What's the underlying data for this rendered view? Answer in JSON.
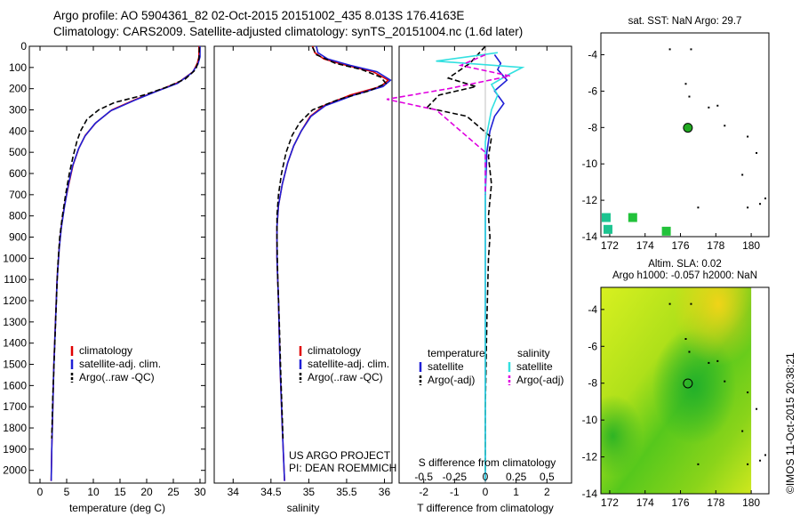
{
  "titles": {
    "line1": "Argo profile: AO 5904361_82 02-Oct-2015 20151002_435 8.013S 176.4163E",
    "line2": "Climatology: CARS2009. Satellite-adjusted climatology: synTS_20151004.nc (1.6d later)"
  },
  "colors": {
    "climatology": "#e00000",
    "satellite": "#1f1fd6",
    "argo": "#000000",
    "satellite_salinity": "#33e0e0",
    "argo_salinity": "#e000e0",
    "map_marker": "#22aa22"
  },
  "chart_data": [
    {
      "id": "temperature",
      "type": "line",
      "xlabel": "temperature (deg C)",
      "ylabel": "",
      "xlim": [
        -2,
        31
      ],
      "ylim": [
        2060,
        0
      ],
      "xticks": [
        0,
        5,
        10,
        15,
        20,
        25,
        30
      ],
      "yticks": [
        0,
        100,
        200,
        300,
        400,
        500,
        600,
        700,
        800,
        900,
        1000,
        1100,
        1200,
        1300,
        1400,
        1500,
        1600,
        1700,
        1800,
        1900,
        2000
      ],
      "legend": [
        "climatology",
        "satellite-adj. clim.",
        "Argo(..raw -QC)"
      ],
      "legend_loc": "lower-center",
      "series": [
        {
          "name": "climatology",
          "color": "climatology",
          "dash": "",
          "points": [
            [
              29.8,
              0
            ],
            [
              29.8,
              50
            ],
            [
              29.5,
              80
            ],
            [
              28.7,
              120
            ],
            [
              26,
              170
            ],
            [
              22,
              210
            ],
            [
              18,
              250
            ],
            [
              13.5,
              300
            ],
            [
              10.5,
              360
            ],
            [
              8.5,
              420
            ],
            [
              7.3,
              480
            ],
            [
              6.2,
              560
            ],
            [
              5.4,
              650
            ],
            [
              4.6,
              750
            ],
            [
              4,
              850
            ],
            [
              3.6,
              950
            ],
            [
              3.2,
              1100
            ],
            [
              2.9,
              1300
            ],
            [
              2.6,
              1500
            ],
            [
              2.4,
              1700
            ],
            [
              2.2,
              1900
            ],
            [
              2.1,
              2050
            ]
          ]
        },
        {
          "name": "satellite-adj. clim.",
          "color": "satellite",
          "dash": "",
          "points": [
            [
              30,
              0
            ],
            [
              30,
              50
            ],
            [
              29.6,
              85
            ],
            [
              28.5,
              125
            ],
            [
              25.8,
              175
            ],
            [
              21.6,
              215
            ],
            [
              17.7,
              255
            ],
            [
              13.2,
              305
            ],
            [
              10.3,
              365
            ],
            [
              8.4,
              425
            ],
            [
              7.2,
              485
            ],
            [
              6.1,
              565
            ],
            [
              5.3,
              655
            ],
            [
              4.6,
              755
            ],
            [
              4,
              855
            ],
            [
              3.6,
              955
            ],
            [
              3.2,
              1105
            ],
            [
              2.9,
              1305
            ],
            [
              2.6,
              1505
            ],
            [
              2.4,
              1705
            ],
            [
              2.2,
              1905
            ],
            [
              2.1,
              2050
            ]
          ]
        },
        {
          "name": "Argo(..raw -QC)",
          "color": "argo",
          "dash": "6 3",
          "points": [
            [
              29.9,
              5
            ],
            [
              29.8,
              60
            ],
            [
              29.2,
              110
            ],
            [
              27.2,
              155
            ],
            [
              23.5,
              195
            ],
            [
              19.5,
              230
            ],
            [
              14,
              265
            ],
            [
              11,
              300
            ],
            [
              8.8,
              345
            ],
            [
              7.6,
              400
            ],
            [
              6.9,
              450
            ],
            [
              6.2,
              520
            ],
            [
              5.5,
              600
            ],
            [
              4.8,
              700
            ],
            [
              4.2,
              800
            ],
            [
              3.7,
              900
            ],
            [
              3.3,
              1050
            ],
            [
              3,
              1250
            ],
            [
              2.7,
              1450
            ],
            [
              2.4,
              1650
            ],
            [
              2.2,
              1850
            ]
          ]
        }
      ]
    },
    {
      "id": "salinity",
      "type": "line",
      "xlabel": "salinity",
      "ylabel": "",
      "xlim": [
        33.75,
        36.1
      ],
      "ylim": [
        2060,
        0
      ],
      "xticks": [
        34,
        34.5,
        35,
        35.5,
        36
      ],
      "legend": [
        "climatology",
        "satellite-adj. clim.",
        "Argo(..raw -QC)"
      ],
      "legend_loc": "lower-right",
      "annotation": [
        "US ARGO PROJECT",
        "PI: DEAN ROEMMICH"
      ],
      "series": [
        {
          "name": "climatology",
          "color": "climatology",
          "dash": "",
          "points": [
            [
              35.05,
              0
            ],
            [
              35.08,
              30
            ],
            [
              35.2,
              60
            ],
            [
              35.5,
              90
            ],
            [
              35.85,
              120
            ],
            [
              36.05,
              160
            ],
            [
              35.95,
              190
            ],
            [
              35.55,
              230
            ],
            [
              35.2,
              280
            ],
            [
              35.02,
              330
            ],
            [
              34.9,
              400
            ],
            [
              34.8,
              470
            ],
            [
              34.72,
              550
            ],
            [
              34.65,
              650
            ],
            [
              34.6,
              750
            ],
            [
              34.58,
              850
            ],
            [
              34.58,
              1000
            ],
            [
              34.6,
              1200
            ],
            [
              34.62,
              1500
            ],
            [
              34.65,
              1800
            ],
            [
              34.68,
              2050
            ]
          ]
        },
        {
          "name": "satellite-adj. clim.",
          "color": "satellite",
          "dash": "",
          "points": [
            [
              35.1,
              0
            ],
            [
              35.12,
              30
            ],
            [
              35.25,
              60
            ],
            [
              35.55,
              90
            ],
            [
              35.9,
              120
            ],
            [
              36.08,
              160
            ],
            [
              35.98,
              190
            ],
            [
              35.6,
              230
            ],
            [
              35.22,
              280
            ],
            [
              35.03,
              330
            ],
            [
              34.9,
              400
            ],
            [
              34.8,
              470
            ],
            [
              34.72,
              550
            ],
            [
              34.65,
              650
            ],
            [
              34.6,
              750
            ],
            [
              34.58,
              850
            ],
            [
              34.58,
              1000
            ],
            [
              34.6,
              1200
            ],
            [
              34.62,
              1500
            ],
            [
              34.65,
              1800
            ],
            [
              34.68,
              2050
            ]
          ]
        },
        {
          "name": "Argo(..raw -QC)",
          "color": "argo",
          "dash": "6 3",
          "points": [
            [
              35.05,
              5
            ],
            [
              35.1,
              40
            ],
            [
              35.35,
              80
            ],
            [
              35.7,
              110
            ],
            [
              35.95,
              145
            ],
            [
              36.02,
              175
            ],
            [
              35.8,
              210
            ],
            [
              35.4,
              250
            ],
            [
              35.05,
              300
            ],
            [
              34.88,
              360
            ],
            [
              34.78,
              420
            ],
            [
              34.7,
              500
            ],
            [
              34.64,
              600
            ],
            [
              34.6,
              700
            ],
            [
              34.58,
              800
            ],
            [
              34.58,
              900
            ],
            [
              34.59,
              1100
            ],
            [
              34.61,
              1300
            ],
            [
              34.63,
              1550
            ],
            [
              34.66,
              1850
            ]
          ]
        }
      ]
    },
    {
      "id": "difference",
      "type": "line",
      "xlabel": "T difference from climatology",
      "xlabel_top": "S difference from climatology",
      "ylabel": "",
      "xlim": [
        -2.8,
        2.8
      ],
      "ylim": [
        2060,
        0
      ],
      "xticks": [
        -2,
        -1,
        0,
        1,
        2
      ],
      "xticks_top": [
        -0.5,
        -0.25,
        0,
        0.25,
        0.5
      ],
      "legend_headers": [
        "temperature",
        "salinity"
      ],
      "legend": [
        "satellite",
        "Argo(-adj)",
        "satellite",
        "Argo(-adj)"
      ],
      "legend_loc": "lower-center",
      "series": [
        {
          "name": "satellite",
          "group": "temperature",
          "color": "satellite",
          "dash": "",
          "points": [
            [
              0.3,
              40
            ],
            [
              0.5,
              80
            ],
            [
              0.4,
              110
            ],
            [
              0.7,
              160
            ],
            [
              0.3,
              210
            ],
            [
              0.6,
              270
            ],
            [
              0.3,
              330
            ],
            [
              0.15,
              400
            ],
            [
              0.05,
              500
            ],
            [
              0.0,
              700
            ],
            [
              0.0,
              1000
            ],
            [
              0.0,
              1300
            ],
            [
              0.0,
              1600
            ],
            [
              0.0,
              2050
            ]
          ]
        },
        {
          "name": "Argo(-adj)",
          "group": "temperature",
          "color": "argo",
          "dash": "6 3",
          "points": [
            [
              0,
              0
            ],
            [
              -0.5,
              80
            ],
            [
              -1.2,
              150
            ],
            [
              -0.3,
              190
            ],
            [
              -1.5,
              230
            ],
            [
              -1.9,
              290
            ],
            [
              -0.6,
              330
            ],
            [
              -0.2,
              380
            ],
            [
              0.2,
              430
            ],
            [
              0.1,
              520
            ],
            [
              0.2,
              650
            ],
            [
              0.1,
              800
            ],
            [
              0.15,
              900
            ],
            [
              0.1,
              1000
            ],
            [
              0.05,
              1300
            ],
            [
              0.0,
              1700
            ],
            [
              0.0,
              2000
            ]
          ]
        },
        {
          "name": "satellite",
          "group": "salinity",
          "color": "satellite_salinity",
          "dash": "",
          "points": [
            [
              0.1,
              30
            ],
            [
              -0.4,
              70
            ],
            [
              0.3,
              100
            ],
            [
              0.2,
              130
            ],
            [
              0.05,
              180
            ],
            [
              0.1,
              230
            ],
            [
              0.05,
              300
            ],
            [
              0.0,
              450
            ],
            [
              0.0,
              800
            ],
            [
              0.0,
              1500
            ],
            [
              0.0,
              2050
            ]
          ]
        },
        {
          "name": "Argo(-adj)",
          "group": "salinity",
          "color": "argo_salinity",
          "dash": "6 3",
          "points": [
            [
              0.0,
              40
            ],
            [
              -0.2,
              90
            ],
            [
              0.2,
              140
            ],
            [
              -0.3,
              200
            ],
            [
              -0.8,
              250
            ],
            [
              -0.4,
              300
            ],
            [
              -0.2,
              400
            ],
            [
              0.0,
              500
            ],
            [
              0.0,
              700
            ]
          ]
        }
      ]
    },
    {
      "id": "sst-map",
      "type": "scatter",
      "title_lines": [
        "sat. SST: NaN Argo: 29.7"
      ],
      "xlim": [
        171.5,
        181
      ],
      "ylim": [
        -14,
        -2.8
      ],
      "xticks": [
        172,
        174,
        176,
        178,
        180
      ],
      "yticks": [
        -14,
        -12,
        -10,
        -8,
        -6,
        -4
      ],
      "argo_position": [
        176.42,
        -8.013
      ],
      "squares": [
        [
          171.8,
          -12.95
        ],
        [
          171.9,
          -13.6
        ],
        [
          173.3,
          -12.95
        ],
        [
          175.2,
          -13.7
        ]
      ],
      "dots": [
        [
          175.4,
          -3.7
        ],
        [
          176.6,
          -3.7
        ],
        [
          176.3,
          -5.6
        ],
        [
          176.5,
          -6.3
        ],
        [
          177.6,
          -6.9
        ],
        [
          178.1,
          -6.8
        ],
        [
          178.5,
          -7.9
        ],
        [
          179.8,
          -8.5
        ],
        [
          180.3,
          -9.4
        ],
        [
          179.5,
          -10.6
        ],
        [
          180.8,
          -11.9
        ],
        [
          180.5,
          -12.2
        ],
        [
          179.8,
          -12.4
        ],
        [
          177,
          -12.4
        ]
      ]
    },
    {
      "id": "sla-map",
      "type": "heatmap",
      "title_lines": [
        "Altim. SLA: 0.02",
        "Argo h1000: -0.057 h2000: NaN"
      ],
      "xlim": [
        171.5,
        181
      ],
      "ylim": [
        -14,
        -2.8
      ],
      "xticks": [
        172,
        174,
        176,
        178,
        180
      ],
      "yticks": [
        -14,
        -12,
        -10,
        -8,
        -6,
        -4
      ],
      "argo_position": [
        176.42,
        -8.013
      ],
      "dots": [
        [
          175.4,
          -3.7
        ],
        [
          176.6,
          -3.7
        ],
        [
          176.3,
          -5.6
        ],
        [
          176.5,
          -6.3
        ],
        [
          177.6,
          -6.9
        ],
        [
          178.1,
          -6.8
        ],
        [
          178.5,
          -7.9
        ],
        [
          179.8,
          -8.5
        ],
        [
          180.3,
          -9.4
        ],
        [
          179.5,
          -10.6
        ],
        [
          180.8,
          -11.9
        ],
        [
          180.5,
          -12.2
        ],
        [
          179.8,
          -12.4
        ],
        [
          177,
          -12.4
        ]
      ]
    }
  ],
  "footer": {
    "watermark": "©IMOS 11-Oct-2015 20:38:21"
  }
}
